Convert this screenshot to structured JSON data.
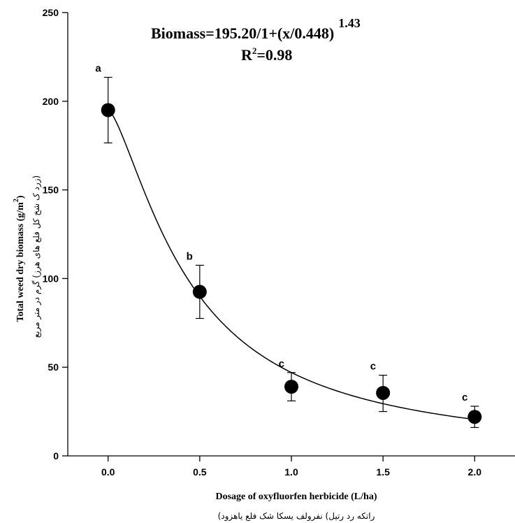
{
  "chart_data": {
    "type": "scatter",
    "x": [
      0.0,
      0.5,
      1.0,
      1.5,
      2.0
    ],
    "series": [
      {
        "values": [
          195,
          92.5,
          39,
          35.5,
          22
        ],
        "error_lower": [
          176.5,
          77.5,
          31,
          25,
          16
        ],
        "error_upper": [
          213.5,
          107.5,
          47,
          45.5,
          28
        ],
        "letters": [
          "a",
          "b",
          "c",
          "c",
          "c"
        ]
      }
    ],
    "fit": {
      "a": 195.2,
      "b": 0.448,
      "c": 1.43
    },
    "xlabel": "Dosage of oxyfluorfen herbicide (L/ha)",
    "xlabel_sub": "راتکه رد رتیل) نفرولف یسکا شک فلع یاهزود)",
    "ylabel_main": "Total weed dry biomass (g/m",
    "ylabel_sup": "2",
    "ylabel_close": ")",
    "ylabel_sub": "(زرد ک شخ کل فلع های هرز) گرم در متر مربع",
    "equation": {
      "line1_main": "Biomass=195.20/1+(x/0.448)",
      "line1_sup": "1.43",
      "line2_r": "R",
      "line2_sup": "2",
      "line2_rest": "=0.98"
    },
    "xticks": [
      "0.0",
      "0.5",
      "1.0",
      "1.5",
      "2.0"
    ],
    "yticks": [
      "0",
      "50",
      "100",
      "150",
      "200",
      "250"
    ],
    "xlim": [
      -0.22,
      2.22
    ],
    "ylim": [
      0,
      250
    ],
    "grid": false,
    "legend": "none"
  }
}
